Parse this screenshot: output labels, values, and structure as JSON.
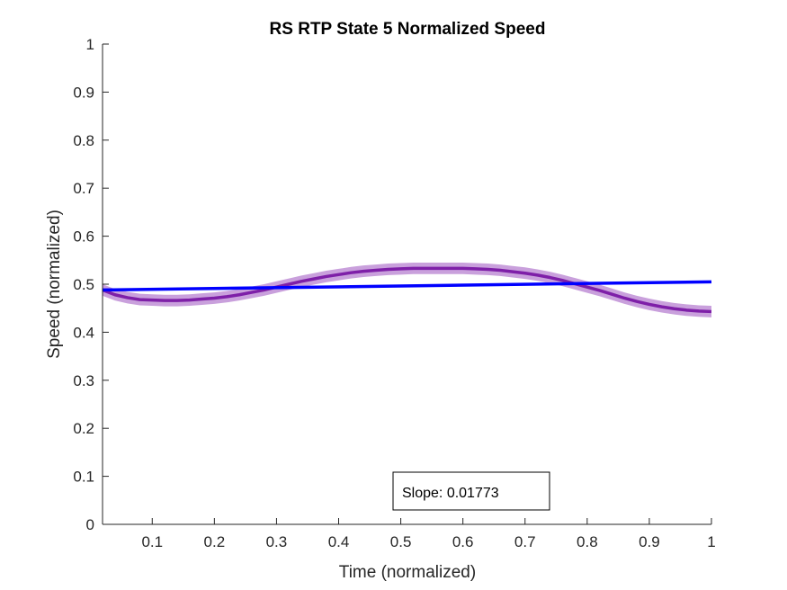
{
  "chart_data": {
    "type": "line",
    "title": "RS  RTP State 5 Normalized Speed",
    "xlabel": "Time (normalized)",
    "ylabel": "Speed (normalized)",
    "xlim": [
      0.02,
      1.0
    ],
    "ylim": [
      0,
      1
    ],
    "xticks": [
      "0.1",
      "0.2",
      "0.3",
      "0.4",
      "0.5",
      "0.6",
      "0.7",
      "0.8",
      "0.9",
      "1"
    ],
    "yticks": [
      "0",
      "0.1",
      "0.2",
      "0.3",
      "0.4",
      "0.5",
      "0.6",
      "0.7",
      "0.8",
      "0.9",
      "1"
    ],
    "grid": false,
    "legend": "none",
    "series": [
      {
        "role": "mean",
        "color": "#7e1fa8",
        "x": [
          0.02,
          0.04,
          0.06,
          0.08,
          0.1,
          0.12,
          0.14,
          0.16,
          0.18,
          0.2,
          0.22,
          0.24,
          0.26,
          0.28,
          0.3,
          0.32,
          0.34,
          0.36,
          0.38,
          0.4,
          0.42,
          0.44,
          0.46,
          0.48,
          0.5,
          0.52,
          0.54,
          0.56,
          0.58,
          0.6,
          0.62,
          0.64,
          0.66,
          0.68,
          0.7,
          0.72,
          0.74,
          0.76,
          0.78,
          0.8,
          0.82,
          0.84,
          0.86,
          0.88,
          0.9,
          0.92,
          0.94,
          0.96,
          0.98,
          1.0
        ],
        "y": [
          0.488,
          0.478,
          0.472,
          0.468,
          0.467,
          0.466,
          0.466,
          0.467,
          0.469,
          0.471,
          0.474,
          0.478,
          0.483,
          0.488,
          0.494,
          0.5,
          0.506,
          0.511,
          0.516,
          0.52,
          0.524,
          0.527,
          0.529,
          0.531,
          0.532,
          0.533,
          0.533,
          0.533,
          0.533,
          0.533,
          0.532,
          0.531,
          0.529,
          0.526,
          0.523,
          0.519,
          0.514,
          0.508,
          0.501,
          0.494,
          0.487,
          0.479,
          0.471,
          0.464,
          0.458,
          0.453,
          0.449,
          0.446,
          0.444,
          0.443
        ]
      },
      {
        "role": "error-band",
        "color": "#c9a0dc",
        "half_width": 0.012
      },
      {
        "role": "linear-fit",
        "color": "#0000ff",
        "x": [
          0.02,
          1.0
        ],
        "y": [
          0.488,
          0.505
        ]
      }
    ],
    "annotations": [
      {
        "text": "Slope: 0.01773"
      }
    ]
  }
}
